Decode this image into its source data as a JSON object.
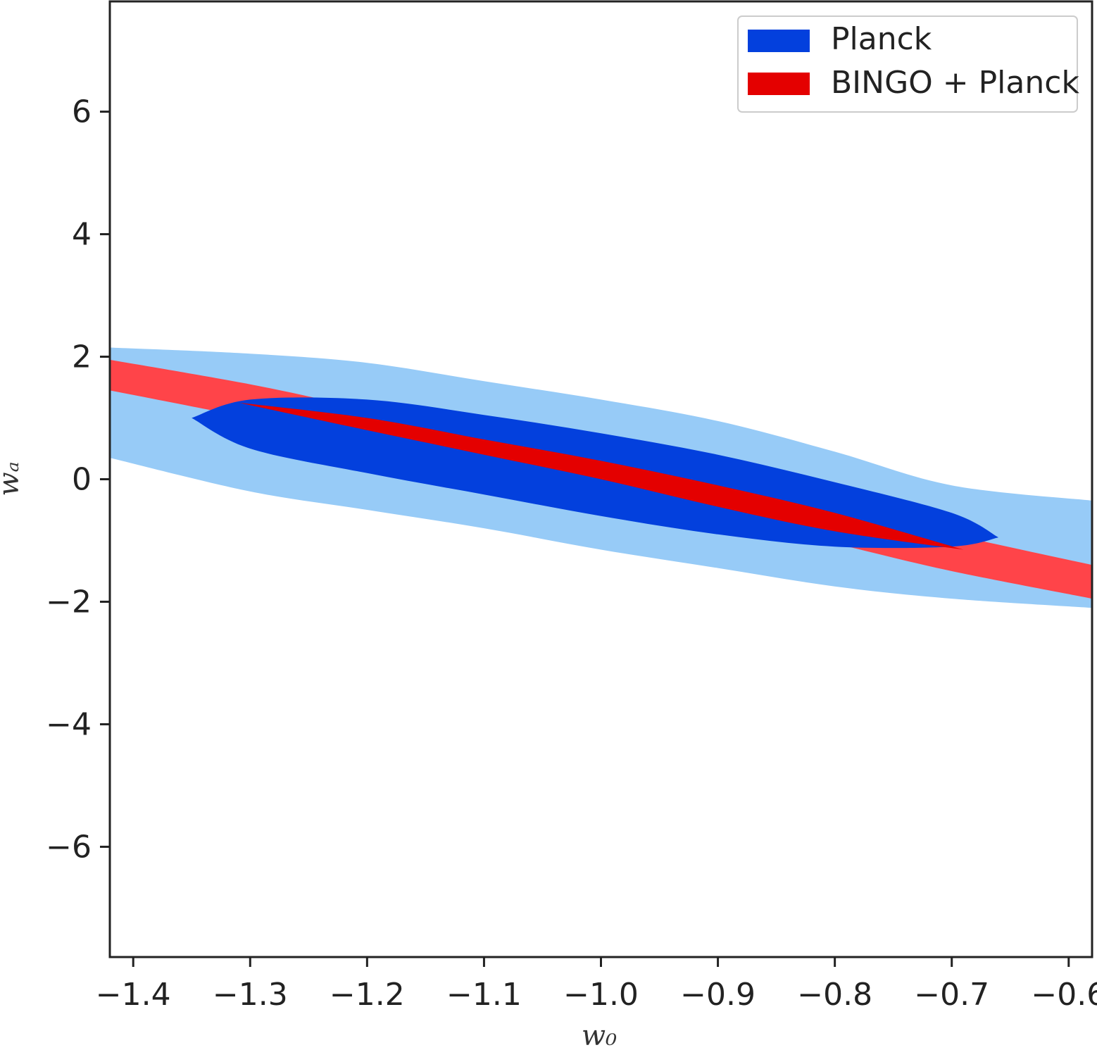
{
  "chart_data": {
    "type": "contour",
    "title": "",
    "xlabel": "w₀",
    "ylabel": "wₐ",
    "xlim": [
      -1.42,
      -0.58
    ],
    "ylim": [
      -7.8,
      7.8
    ],
    "x_ticks": [
      -1.4,
      -1.3,
      -1.2,
      -1.1,
      -1.0,
      -0.9,
      -0.8,
      -0.7,
      -0.6
    ],
    "x_tick_labels": [
      "−1.4",
      "−1.3",
      "−1.2",
      "−1.1",
      "−1.0",
      "−0.9",
      "−0.8",
      "−0.7",
      "−0.6"
    ],
    "y_ticks": [
      6,
      4,
      2,
      0,
      -2,
      -4,
      -6
    ],
    "y_tick_labels": [
      "6",
      "4",
      "2",
      "0",
      "−2",
      "−4",
      "−6"
    ],
    "grid": false,
    "legend_position": "top-right",
    "series": [
      {
        "name": "Planck",
        "legend_color": "#0340dd",
        "contours": [
          {
            "level": "2-sigma",
            "color": "#97cbf7",
            "center": [
              -1.0,
              0.0
            ],
            "upper_edge": [
              [
                -1.42,
                2.15
              ],
              [
                -1.3,
                2.05
              ],
              [
                -1.2,
                1.9
              ],
              [
                -1.1,
                1.6
              ],
              [
                -1.0,
                1.3
              ],
              [
                -0.9,
                0.95
              ],
              [
                -0.8,
                0.45
              ],
              [
                -0.7,
                -0.1
              ],
              [
                -0.58,
                -0.35
              ]
            ],
            "lower_edge": [
              [
                -1.42,
                0.35
              ],
              [
                -1.3,
                -0.2
              ],
              [
                -1.2,
                -0.5
              ],
              [
                -1.1,
                -0.8
              ],
              [
                -1.0,
                -1.15
              ],
              [
                -0.9,
                -1.45
              ],
              [
                -0.8,
                -1.75
              ],
              [
                -0.7,
                -1.95
              ],
              [
                -0.58,
                -2.1
              ]
            ]
          },
          {
            "level": "1-sigma",
            "color": "#0340dd",
            "center": [
              -1.0,
              0.0
            ],
            "x_range": [
              -1.35,
              -0.66
            ],
            "upper_edge": [
              [
                -1.35,
                1.0
              ],
              [
                -1.3,
                1.3
              ],
              [
                -1.2,
                1.3
              ],
              [
                -1.1,
                1.05
              ],
              [
                -1.0,
                0.75
              ],
              [
                -0.9,
                0.4
              ],
              [
                -0.8,
                -0.05
              ],
              [
                -0.7,
                -0.55
              ],
              [
                -0.66,
                -0.95
              ]
            ],
            "lower_edge": [
              [
                -1.35,
                1.0
              ],
              [
                -1.3,
                0.5
              ],
              [
                -1.2,
                0.1
              ],
              [
                -1.1,
                -0.25
              ],
              [
                -1.0,
                -0.6
              ],
              [
                -0.9,
                -0.9
              ],
              [
                -0.8,
                -1.1
              ],
              [
                -0.7,
                -1.1
              ],
              [
                -0.66,
                -0.95
              ]
            ]
          }
        ]
      },
      {
        "name": "BINGO + Planck",
        "legend_color": "#e40000",
        "contours": [
          {
            "level": "2-sigma",
            "color": "#ff4449",
            "center": [
              -1.0,
              0.0
            ],
            "upper_edge": [
              [
                -1.42,
                1.95
              ],
              [
                -1.3,
                1.55
              ],
              [
                -1.2,
                1.15
              ],
              [
                -1.1,
                0.8
              ],
              [
                -1.0,
                0.4
              ],
              [
                -0.9,
                0.0
              ],
              [
                -0.8,
                -0.45
              ],
              [
                -0.7,
                -0.9
              ],
              [
                -0.58,
                -1.4
              ]
            ],
            "lower_edge": [
              [
                -1.42,
                1.45
              ],
              [
                -1.3,
                1.0
              ],
              [
                -1.2,
                0.6
              ],
              [
                -1.1,
                0.2
              ],
              [
                -1.0,
                -0.2
              ],
              [
                -0.9,
                -0.6
              ],
              [
                -0.8,
                -1.05
              ],
              [
                -0.7,
                -1.5
              ],
              [
                -0.58,
                -1.95
              ]
            ]
          },
          {
            "level": "1-sigma",
            "color": "#e40000",
            "center": [
              -1.0,
              0.0
            ],
            "x_range": [
              -1.31,
              -0.69
            ],
            "upper_edge": [
              [
                -1.31,
                1.25
              ],
              [
                -1.2,
                1.0
              ],
              [
                -1.1,
                0.65
              ],
              [
                -1.0,
                0.3
              ],
              [
                -0.9,
                -0.1
              ],
              [
                -0.8,
                -0.55
              ],
              [
                -0.69,
                -1.15
              ]
            ],
            "lower_edge": [
              [
                -1.31,
                1.25
              ],
              [
                -1.2,
                0.8
              ],
              [
                -1.1,
                0.4
              ],
              [
                -1.0,
                0.0
              ],
              [
                -0.9,
                -0.45
              ],
              [
                -0.8,
                -0.85
              ],
              [
                -0.69,
                -1.15
              ]
            ]
          }
        ]
      }
    ]
  }
}
